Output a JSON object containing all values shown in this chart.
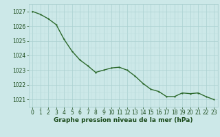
{
  "x": [
    0,
    1,
    2,
    3,
    4,
    5,
    6,
    7,
    8,
    9,
    10,
    11,
    12,
    13,
    14,
    15,
    16,
    17,
    18,
    19,
    20,
    21,
    22,
    23
  ],
  "y": [
    1027.0,
    1026.8,
    1026.5,
    1026.1,
    1025.1,
    1024.3,
    1023.7,
    1023.3,
    1022.85,
    1023.0,
    1023.15,
    1023.2,
    1023.0,
    1022.6,
    1022.1,
    1021.7,
    1021.55,
    1021.2,
    1021.2,
    1021.45,
    1021.4,
    1021.45,
    1021.2,
    1021.0
  ],
  "line_color": "#2d6a2d",
  "marker_color": "#2d6a2d",
  "bg_color": "#cce8e8",
  "plot_bg_color": "#cce8e8",
  "grid_major_color": "#aad0d0",
  "grid_minor_color": "#bbdede",
  "axis_label_color": "#1a4a1a",
  "tick_label_color": "#1a4a1a",
  "xlabel": "Graphe pression niveau de la mer (hPa)",
  "ylim": [
    1020.5,
    1027.5
  ],
  "xlim": [
    -0.5,
    23.5
  ],
  "yticks": [
    1021,
    1022,
    1023,
    1024,
    1025,
    1026,
    1027
  ],
  "xticks": [
    0,
    1,
    2,
    3,
    4,
    5,
    6,
    7,
    8,
    9,
    10,
    11,
    12,
    13,
    14,
    15,
    16,
    17,
    18,
    19,
    20,
    21,
    22,
    23
  ],
  "marker_size": 2.5,
  "line_width": 1.0,
  "xlabel_fontsize": 6.5,
  "tick_fontsize": 5.5
}
